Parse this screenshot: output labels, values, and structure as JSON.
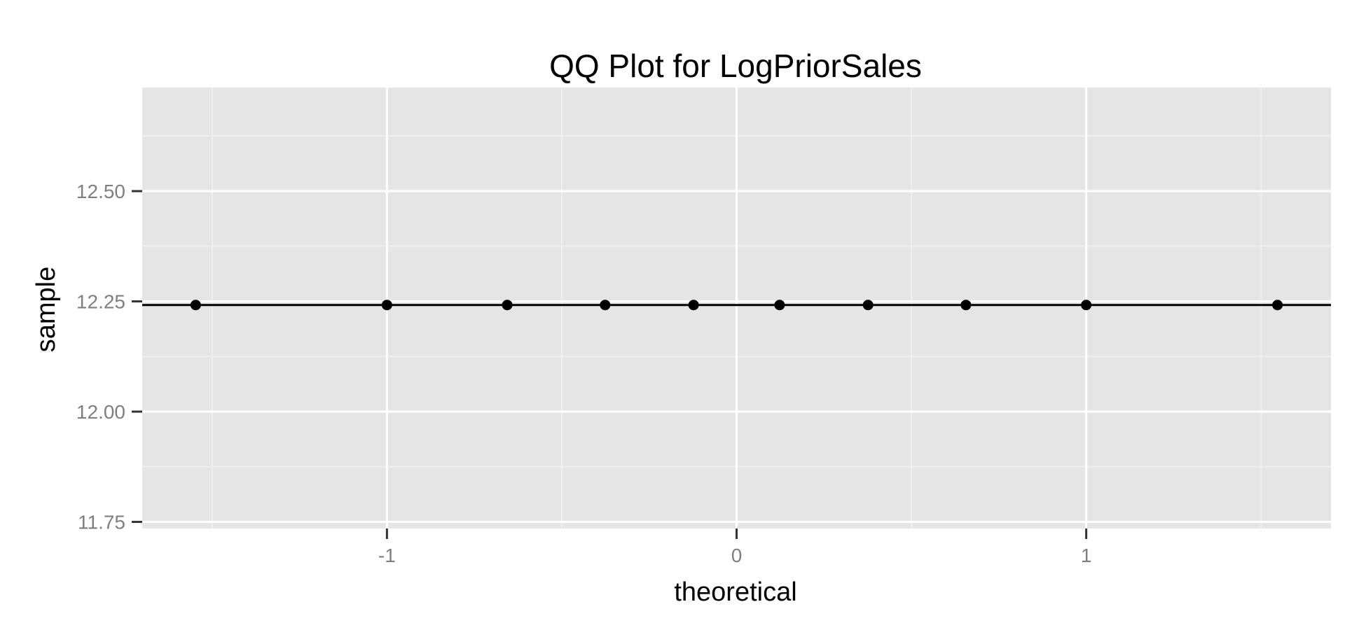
{
  "chart_data": {
    "type": "scatter",
    "title": "QQ Plot for LogPriorSales",
    "xlabel": "theoretical",
    "ylabel": "sample",
    "xlim": [
      -1.7,
      1.7
    ],
    "ylim": [
      11.735,
      12.735
    ],
    "x_ticks": [
      -1,
      0,
      1
    ],
    "x_tick_labels": [
      "-1",
      "0",
      "1"
    ],
    "y_ticks": [
      11.75,
      12.0,
      12.25,
      12.5
    ],
    "y_tick_labels": [
      "11.75",
      "12.00",
      "12.25",
      "12.50"
    ],
    "grid": true,
    "legend": "none",
    "colors": {
      "panel": "#e5e5e5",
      "grid_major": "#ffffff",
      "grid_minor": "#f2f2f2",
      "point": "#000000",
      "reference_line": "#000000"
    },
    "series": [
      {
        "x": [
          -1.547,
          -1.0,
          -0.656,
          -0.376,
          -0.123,
          0.123,
          0.376,
          0.656,
          1.0,
          1.547
        ],
        "y": [
          12.2418,
          12.2418,
          12.2418,
          12.2418,
          12.2418,
          12.2418,
          12.2418,
          12.2418,
          12.2418,
          12.2418
        ]
      }
    ],
    "reference_line": {
      "intercept": 12.2418,
      "slope": 0
    }
  }
}
